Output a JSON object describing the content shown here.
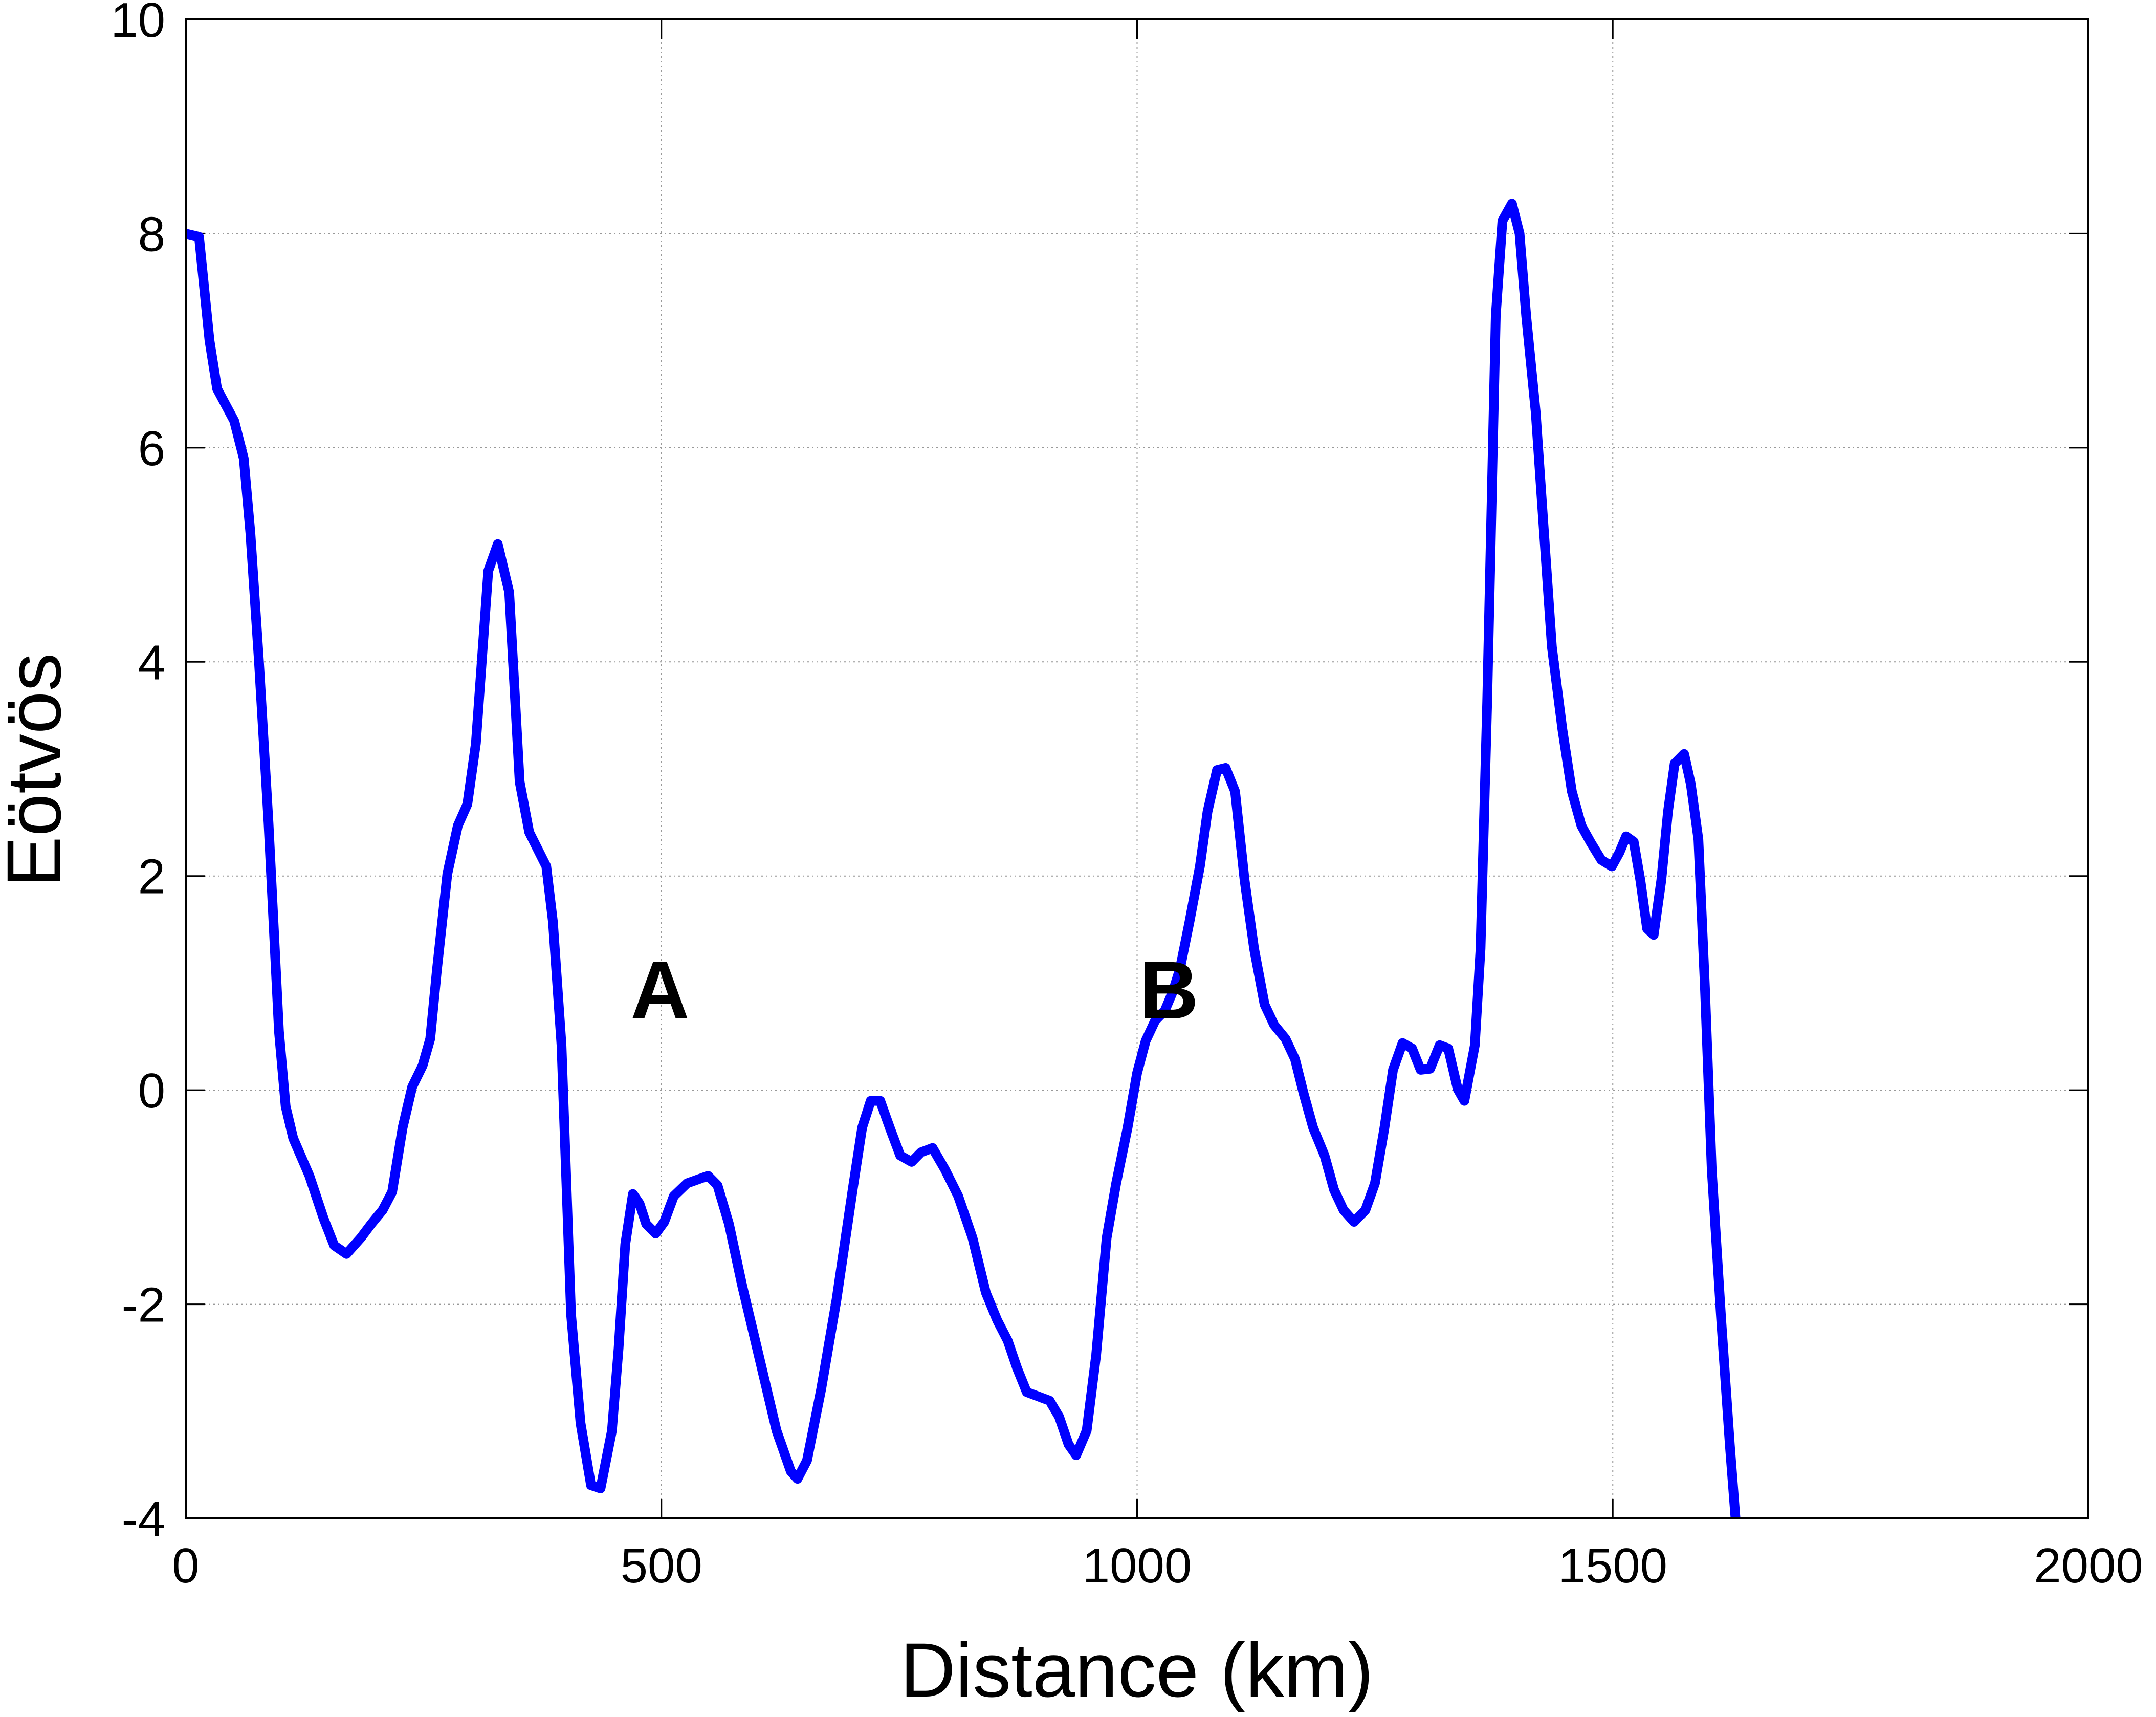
{
  "chart_data": {
    "type": "line",
    "x_label": "Distance (km)",
    "y_label": "Eötvös",
    "x": [
      0,
      14,
      25,
      33,
      51,
      61,
      68,
      77,
      87,
      98,
      105,
      113,
      130,
      145,
      156,
      169,
      184,
      195,
      207,
      217,
      228,
      238,
      249,
      257,
      264,
      275,
      286,
      296,
      305,
      318,
      328,
      340,
      351,
      361,
      379,
      386,
      395,
      405,
      415,
      426,
      436,
      448,
      455,
      462,
      470,
      477,
      484,
      494,
      503,
      513,
      527,
      549,
      559,
      571,
      585,
      604,
      621,
      636,
      643,
      653,
      668,
      684,
      701,
      711,
      720,
      730,
      740,
      751,
      763,
      773,
      785,
      798,
      812,
      827,
      841,
      853,
      864,
      874,
      884,
      896,
      908,
      918,
      928,
      936,
      947,
      957,
      968,
      978,
      990,
      1000,
      1009,
      1019,
      1029,
      1038,
      1045,
      1055,
      1066,
      1074,
      1084,
      1093,
      1103,
      1113,
      1123,
      1134,
      1144,
      1156,
      1166,
      1175,
      1185,
      1197,
      1207,
      1217,
      1228,
      1240,
      1250,
      1260,
      1269,
      1279,
      1289,
      1298,
      1308,
      1318,
      1327,
      1337,
      1344,
      1355,
      1361,
      1368,
      1377,
      1384,
      1394,
      1402,
      1409,
      1419,
      1428,
      1436,
      1447,
      1457,
      1467,
      1477,
      1488,
      1499,
      1507,
      1514,
      1522,
      1529,
      1536,
      1543,
      1551,
      1558,
      1565,
      1575,
      1582,
      1590,
      1597,
      1604,
      1614,
      1623,
      1629
    ],
    "series": [
      {
        "color": "#0000ff",
        "values": [
          8.0,
          7.97,
          7.0,
          6.55,
          6.25,
          5.9,
          5.2,
          4.0,
          2.5,
          0.55,
          -0.15,
          -0.45,
          -0.8,
          -1.2,
          -1.45,
          -1.53,
          -1.38,
          -1.25,
          -1.12,
          -0.95,
          -0.35,
          0.03,
          0.23,
          0.48,
          1.12,
          2.02,
          2.47,
          2.67,
          3.24,
          4.85,
          5.1,
          4.65,
          2.88,
          2.41,
          2.09,
          1.57,
          0.42,
          -2.09,
          -3.11,
          -3.69,
          -3.72,
          -3.18,
          -2.41,
          -1.44,
          -0.97,
          -1.06,
          -1.25,
          -1.34,
          -1.23,
          -0.99,
          -0.87,
          -0.8,
          -0.89,
          -1.25,
          -1.83,
          -2.54,
          -3.18,
          -3.56,
          -3.63,
          -3.46,
          -2.79,
          -1.96,
          -0.93,
          -0.35,
          -0.1,
          -0.1,
          -0.35,
          -0.61,
          -0.67,
          -0.58,
          -0.54,
          -0.74,
          -0.99,
          -1.38,
          -1.89,
          -2.15,
          -2.34,
          -2.6,
          -2.82,
          -2.86,
          -2.9,
          -3.05,
          -3.31,
          -3.41,
          -3.18,
          -2.47,
          -1.38,
          -0.87,
          -0.35,
          0.16,
          0.46,
          0.65,
          0.74,
          0.93,
          1.13,
          1.57,
          2.09,
          2.6,
          2.99,
          3.01,
          2.79,
          1.96,
          1.32,
          0.8,
          0.61,
          0.48,
          0.29,
          -0.03,
          -0.35,
          -0.61,
          -0.93,
          -1.12,
          -1.23,
          -1.12,
          -0.87,
          -0.35,
          0.19,
          0.44,
          0.39,
          0.19,
          0.2,
          0.42,
          0.39,
          0.01,
          -0.1,
          0.42,
          1.32,
          3.63,
          7.23,
          8.12,
          8.28,
          8.0,
          7.23,
          6.33,
          5.17,
          4.14,
          3.37,
          2.79,
          2.47,
          2.31,
          2.15,
          2.09,
          2.22,
          2.37,
          2.32,
          1.96,
          1.51,
          1.45,
          1.96,
          2.6,
          3.05,
          3.14,
          2.86,
          2.34,
          0.93,
          -0.74,
          -2.15,
          -3.31,
          -4.0
        ]
      }
    ],
    "xlim": [
      0,
      2000
    ],
    "ylim": [
      -4,
      10
    ],
    "xticks": [
      0,
      500,
      1000,
      1500,
      2000
    ],
    "yticks": [
      -4,
      -2,
      0,
      2,
      4,
      6,
      8,
      10
    ],
    "grid": true,
    "annotations": [
      "A",
      "B"
    ]
  }
}
